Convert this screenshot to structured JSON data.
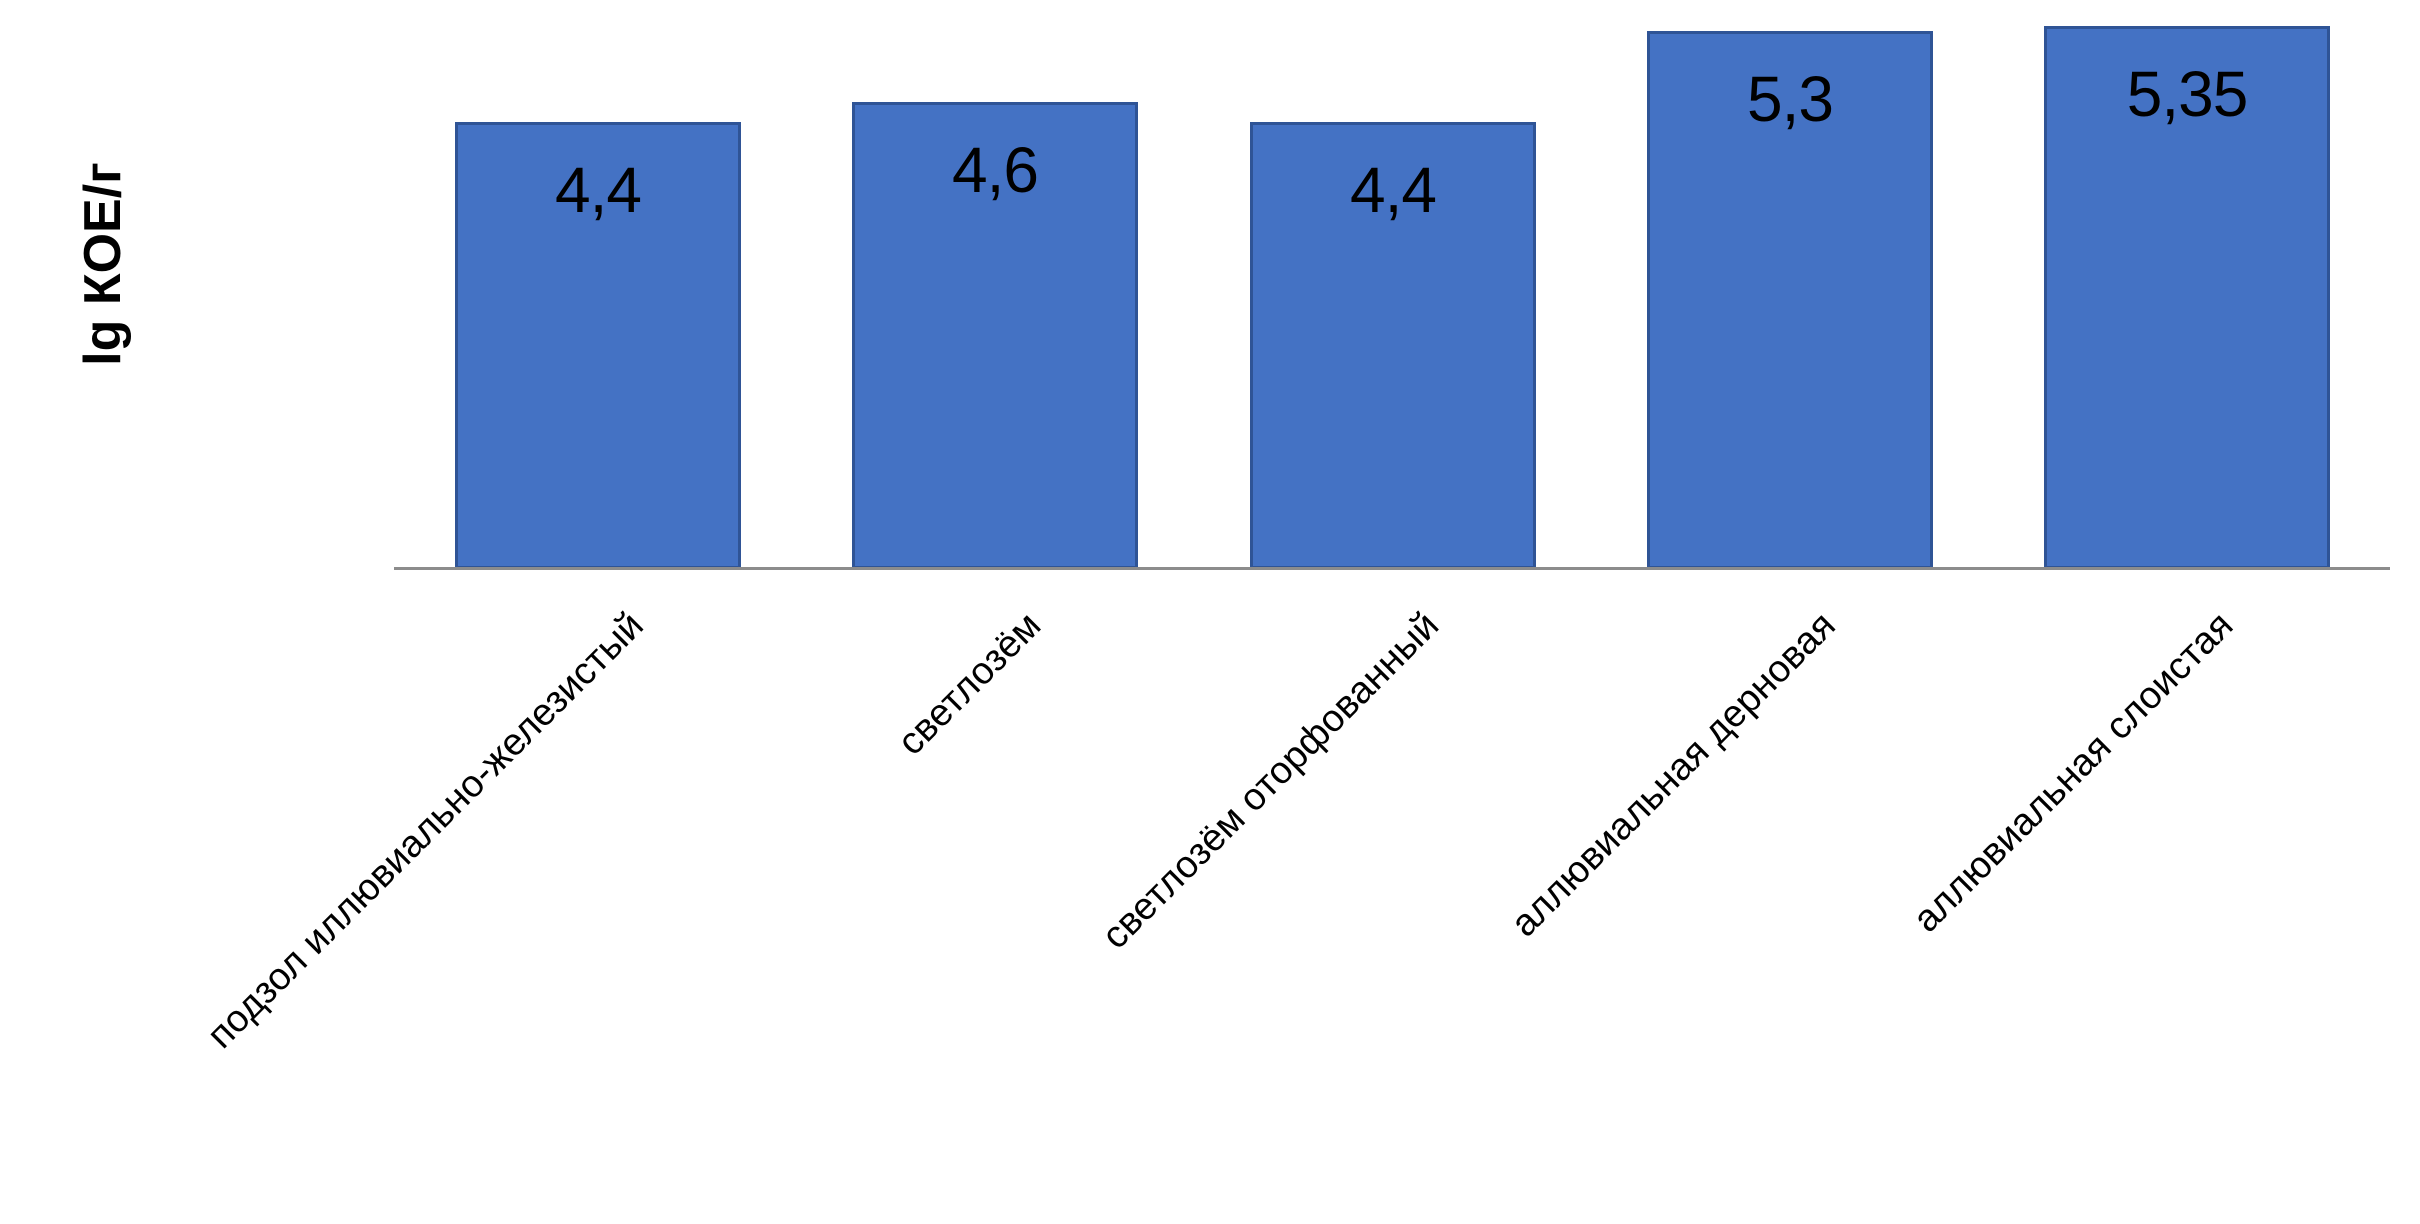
{
  "chart_data": {
    "type": "bar",
    "title": "",
    "xlabel": "",
    "ylabel": "lg КОЕ/г",
    "categories": [
      "подзол иллювиально-железистый",
      "светлозём",
      "светлозём оторфованный",
      "аллювиальная дерновая",
      "аллювиальная слоистая"
    ],
    "values": [
      4.4,
      4.6,
      4.4,
      5.3,
      5.35
    ],
    "value_labels": [
      "4,4",
      "4,6",
      "4,4",
      "5,3",
      "5,35"
    ],
    "ylim": [
      0,
      5.6
    ],
    "grid": false,
    "legend": false,
    "x_tick_label_rotation_deg": 45,
    "colors": {
      "bar_fill": "#4472C4",
      "bar_border": "#2F5496",
      "axis_line": "#8C8C8C",
      "text": "#000000"
    }
  }
}
